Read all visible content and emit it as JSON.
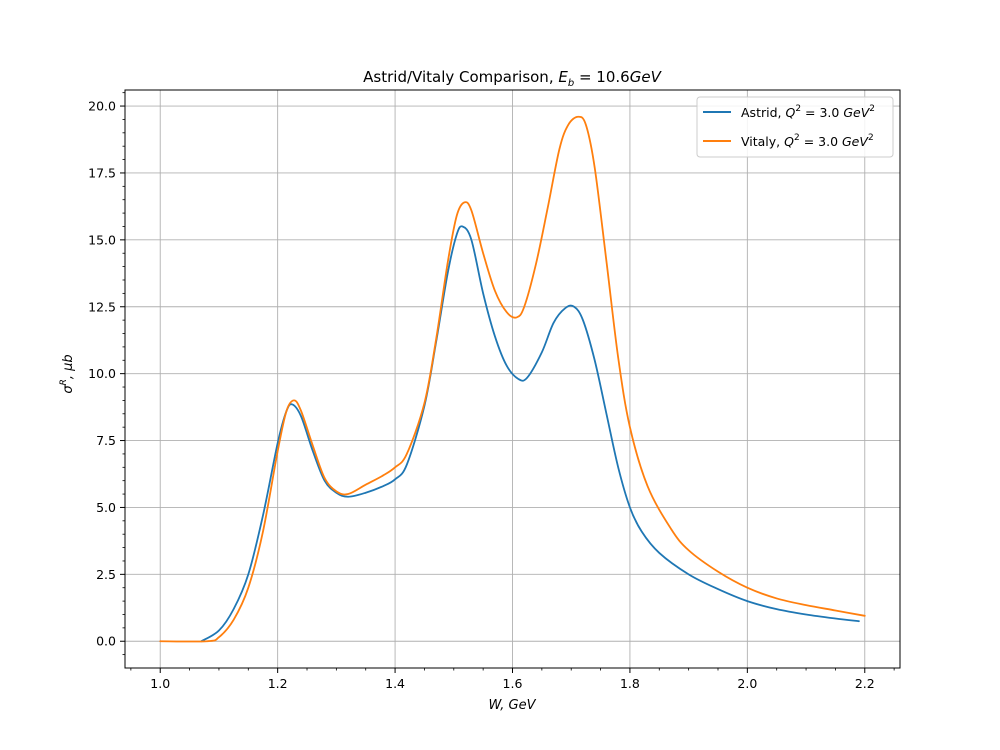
{
  "chart_data": {
    "type": "line",
    "title": "Astrid/Vitaly Comparison, E_b = 10.6GeV",
    "xlabel": "W, GeV",
    "ylabel": "σ^R, μb",
    "xlim": [
      0.94,
      2.26
    ],
    "ylim": [
      -1.0,
      20.6
    ],
    "xticks": [
      "1.0",
      "1.2",
      "1.4",
      "1.6",
      "1.8",
      "2.0",
      "2.2"
    ],
    "yticks": [
      "0.0",
      "2.5",
      "5.0",
      "7.5",
      "10.0",
      "12.5",
      "15.0",
      "17.5",
      "20.0"
    ],
    "grid": true,
    "legend_position": "top-right",
    "series": [
      {
        "name": "Astrid, Q² = 3.0 GeV²",
        "color": "#1f77b4",
        "x": [
          1.07,
          1.1,
          1.125,
          1.15,
          1.175,
          1.2,
          1.215,
          1.225,
          1.24,
          1.26,
          1.28,
          1.3,
          1.32,
          1.35,
          1.38,
          1.4,
          1.42,
          1.45,
          1.47,
          1.49,
          1.505,
          1.515,
          1.53,
          1.55,
          1.57,
          1.59,
          1.61,
          1.625,
          1.65,
          1.67,
          1.69,
          1.705,
          1.72,
          1.74,
          1.76,
          1.78,
          1.8,
          1.82,
          1.85,
          1.9,
          1.95,
          2.0,
          2.05,
          2.1,
          2.15,
          2.19
        ],
        "y": [
          0.0,
          0.4,
          1.2,
          2.5,
          4.7,
          7.4,
          8.6,
          8.85,
          8.4,
          7.1,
          6.0,
          5.55,
          5.4,
          5.55,
          5.8,
          6.05,
          6.6,
          8.8,
          11.2,
          13.8,
          15.2,
          15.5,
          15.0,
          13.0,
          11.4,
          10.3,
          9.8,
          9.85,
          10.8,
          11.9,
          12.45,
          12.5,
          12.0,
          10.5,
          8.5,
          6.5,
          5.0,
          4.1,
          3.3,
          2.5,
          1.95,
          1.5,
          1.2,
          1.0,
          0.85,
          0.75
        ]
      },
      {
        "name": "Vitaly, Q² = 3.0 GeV²",
        "color": "#ff7f0e",
        "x": [
          1.0,
          1.08,
          1.1,
          1.125,
          1.15,
          1.175,
          1.2,
          1.215,
          1.228,
          1.24,
          1.26,
          1.28,
          1.3,
          1.32,
          1.35,
          1.38,
          1.4,
          1.42,
          1.45,
          1.47,
          1.49,
          1.505,
          1.518,
          1.53,
          1.55,
          1.57,
          1.59,
          1.607,
          1.62,
          1.64,
          1.66,
          1.68,
          1.695,
          1.712,
          1.725,
          1.74,
          1.76,
          1.78,
          1.8,
          1.83,
          1.87,
          1.9,
          1.95,
          2.0,
          2.05,
          2.1,
          2.15,
          2.2
        ],
        "y": [
          0.0,
          0.0,
          0.15,
          0.8,
          2.0,
          4.1,
          7.1,
          8.6,
          9.0,
          8.6,
          7.3,
          6.1,
          5.6,
          5.5,
          5.85,
          6.2,
          6.5,
          7.0,
          8.9,
          11.3,
          14.2,
          15.9,
          16.4,
          16.1,
          14.5,
          13.1,
          12.3,
          12.1,
          12.5,
          14.1,
          16.2,
          18.4,
          19.3,
          19.6,
          19.3,
          17.7,
          14.2,
          10.6,
          8.0,
          5.8,
          4.2,
          3.4,
          2.6,
          2.0,
          1.6,
          1.35,
          1.15,
          0.95
        ]
      }
    ]
  }
}
